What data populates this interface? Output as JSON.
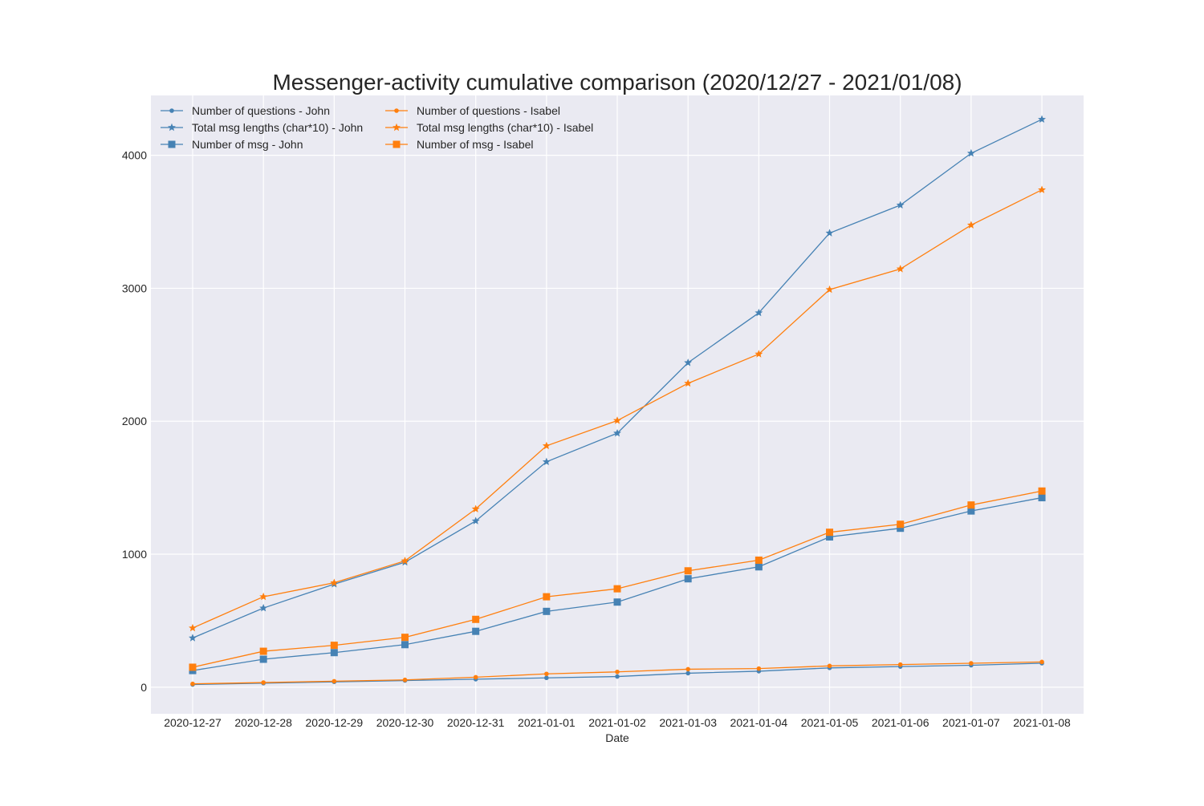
{
  "chart_data": {
    "type": "line",
    "title": "Messenger-activity cumulative comparison (2020/12/27 - 2021/01/08)",
    "xlabel": "Date",
    "ylabel": "",
    "ylim": [
      -200,
      4450
    ],
    "yticks": [
      0,
      1000,
      2000,
      3000,
      4000
    ],
    "grid": true,
    "legend_position": "top-left",
    "legend_columns": 2,
    "background": "#eaeaf2",
    "grid_color": "#ffffff",
    "categories": [
      "2020-12-27",
      "2020-12-28",
      "2020-12-29",
      "2020-12-30",
      "2020-12-31",
      "2021-01-01",
      "2021-01-02",
      "2021-01-03",
      "2021-01-04",
      "2021-01-05",
      "2021-01-06",
      "2021-01-07",
      "2021-01-08"
    ],
    "series": [
      {
        "name": "Number of questions - John",
        "color": "#4682b4",
        "marker": "circle",
        "values": [
          20,
          30,
          40,
          50,
          60,
          70,
          80,
          105,
          120,
          145,
          155,
          165,
          180
        ]
      },
      {
        "name": "Total msg lengths (char*10) - John",
        "color": "#4682b4",
        "marker": "star",
        "values": [
          370,
          595,
          775,
          940,
          1250,
          1695,
          1910,
          2440,
          2815,
          3415,
          3625,
          4015,
          4270
        ]
      },
      {
        "name": "Number of msg - John",
        "color": "#4682b4",
        "marker": "square",
        "values": [
          125,
          210,
          260,
          320,
          420,
          570,
          640,
          815,
          905,
          1130,
          1195,
          1325,
          1425
        ]
      },
      {
        "name": "Number of questions - Isabel",
        "color": "#ff7f0e",
        "marker": "circle",
        "values": [
          25,
          35,
          45,
          55,
          75,
          100,
          115,
          135,
          140,
          160,
          170,
          180,
          190
        ]
      },
      {
        "name": "Total msg lengths (char*10) - Isabel",
        "color": "#ff7f0e",
        "marker": "star",
        "values": [
          445,
          680,
          785,
          950,
          1340,
          1815,
          2005,
          2285,
          2505,
          2990,
          3145,
          3475,
          3740
        ]
      },
      {
        "name": "Number of msg - Isabel",
        "color": "#ff7f0e",
        "marker": "square",
        "values": [
          150,
          270,
          315,
          375,
          510,
          680,
          740,
          875,
          955,
          1165,
          1225,
          1370,
          1475
        ]
      }
    ]
  }
}
